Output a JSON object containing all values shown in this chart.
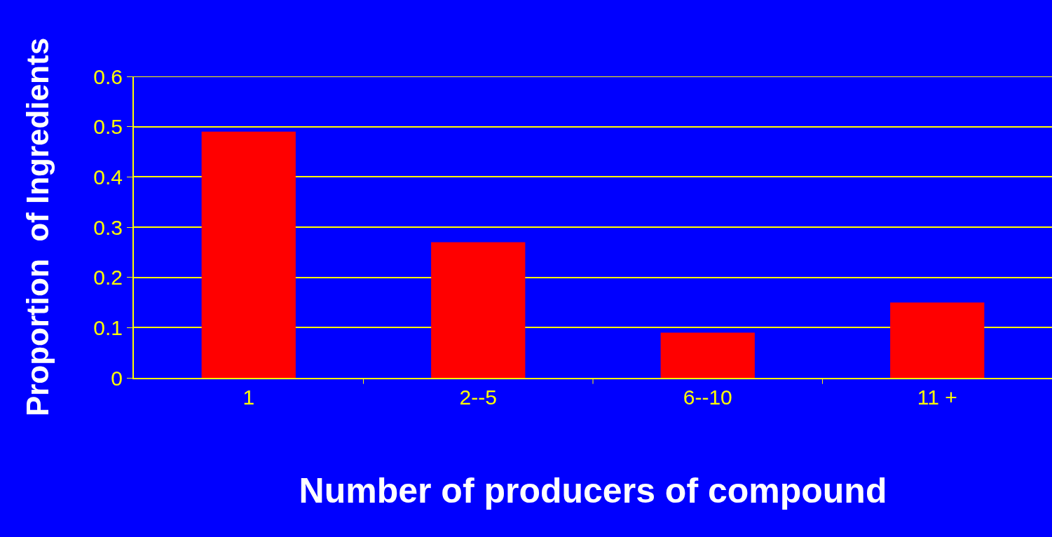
{
  "chart_data": {
    "type": "bar",
    "xlabel": "Number of producers of compound",
    "ylabel": "Proportion  of Ingredients",
    "categories": [
      "1",
      "2--5",
      "6--10",
      "11 +"
    ],
    "values": [
      0.49,
      0.27,
      0.09,
      0.15
    ],
    "color": "#ff0000",
    "ylim": [
      0,
      0.6
    ],
    "yticks": [
      0,
      0.1,
      0.2,
      0.3,
      0.4,
      0.5,
      0.6
    ],
    "grid": "y"
  }
}
